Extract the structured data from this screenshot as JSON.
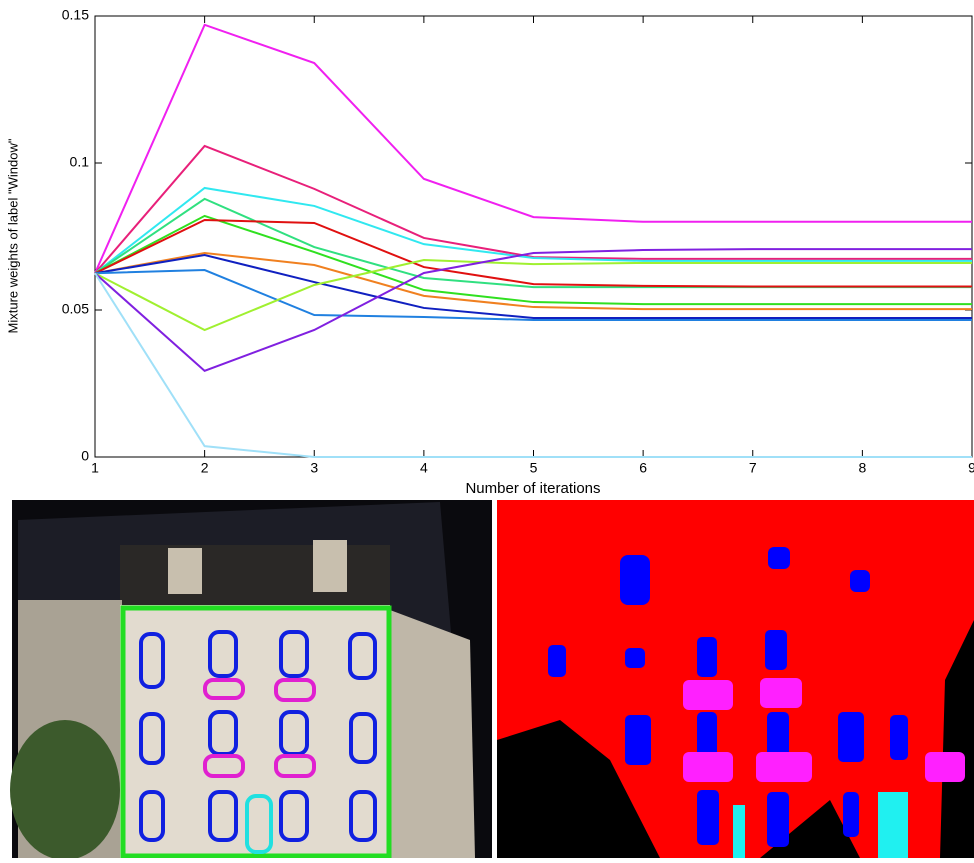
{
  "chart_data": {
    "type": "line",
    "xlabel": "Number of iterations",
    "ylabel": "Mixture weights of label \"Window\"",
    "x": [
      1,
      2,
      3,
      4,
      5,
      6,
      7,
      8,
      9
    ],
    "xlim": [
      1,
      9
    ],
    "xticks": [
      1,
      2,
      3,
      4,
      5,
      6,
      7,
      8,
      9
    ],
    "ylim": [
      0,
      0.15
    ],
    "yticks": [
      0,
      0.05,
      0.1,
      0.15
    ],
    "series": [
      {
        "color": "#f020f0",
        "values": [
          0.0625,
          0.147,
          0.134,
          0.0946,
          0.0816,
          0.08,
          0.08,
          0.08,
          0.08
        ]
      },
      {
        "color": "#e8207a",
        "values": [
          0.0625,
          0.1058,
          0.0912,
          0.0745,
          0.068,
          0.0674,
          0.0674,
          0.0674,
          0.0674
        ]
      },
      {
        "color": "#30e8f0",
        "values": [
          0.0625,
          0.0915,
          0.0854,
          0.0724,
          0.0677,
          0.0667,
          0.0667,
          0.0667,
          0.0667
        ]
      },
      {
        "color": "#30e080",
        "values": [
          0.0625,
          0.0878,
          0.0714,
          0.0609,
          0.0578,
          0.0578,
          0.0578,
          0.0578,
          0.0578
        ]
      },
      {
        "color": "#30e020",
        "values": [
          0.0625,
          0.082,
          0.0697,
          0.0568,
          0.0527,
          0.052,
          0.052,
          0.052,
          0.052
        ]
      },
      {
        "color": "#e01010",
        "values": [
          0.0625,
          0.0806,
          0.0796,
          0.0646,
          0.0588,
          0.0582,
          0.058,
          0.058,
          0.058
        ]
      },
      {
        "color": "#f08020",
        "values": [
          0.0625,
          0.0694,
          0.0653,
          0.0548,
          0.051,
          0.0503,
          0.0503,
          0.0503,
          0.0503
        ]
      },
      {
        "color": "#1020c0",
        "values": [
          0.0625,
          0.0687,
          0.0595,
          0.0507,
          0.0473,
          0.0473,
          0.0473,
          0.0473,
          0.0473
        ]
      },
      {
        "color": "#2080e0",
        "values": [
          0.0625,
          0.0636,
          0.0483,
          0.0476,
          0.0466,
          0.0466,
          0.0466,
          0.0466,
          0.0466
        ]
      },
      {
        "color": "#a0f030",
        "values": [
          0.0625,
          0.0432,
          0.0585,
          0.067,
          0.0656,
          0.066,
          0.066,
          0.066,
          0.066
        ]
      },
      {
        "color": "#8020e0",
        "values": [
          0.0625,
          0.0293,
          0.0432,
          0.0626,
          0.0694,
          0.0704,
          0.0707,
          0.0707,
          0.0707
        ]
      },
      {
        "color": "#a0e0f8",
        "values": [
          0.0625,
          0.0037,
          0,
          0,
          0,
          0,
          0,
          0,
          0
        ]
      }
    ]
  }
}
